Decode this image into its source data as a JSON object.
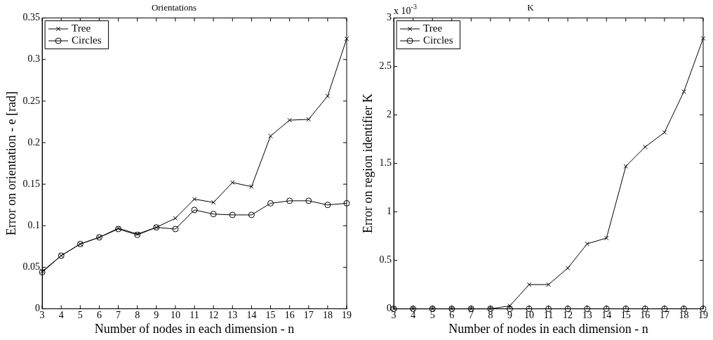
{
  "chart_data": [
    {
      "type": "line",
      "title": "Orientations",
      "xlabel": "Number of nodes in each dimension - n",
      "ylabel": "Error on orientation - e [rad]",
      "x": [
        3,
        4,
        5,
        6,
        7,
        8,
        9,
        10,
        11,
        12,
        13,
        14,
        15,
        16,
        17,
        18,
        19
      ],
      "series": [
        {
          "name": "Tree",
          "color": "#000000",
          "marker": "cross",
          "values": [
            0.045,
            0.064,
            0.078,
            0.086,
            0.097,
            0.09,
            0.098,
            0.109,
            0.132,
            0.128,
            0.152,
            0.147,
            0.208,
            0.227,
            0.228,
            0.256,
            0.325
          ]
        },
        {
          "name": "Circles",
          "color": "#000000",
          "marker": "circle",
          "values": [
            0.044,
            0.064,
            0.078,
            0.086,
            0.096,
            0.089,
            0.098,
            0.096,
            0.119,
            0.114,
            0.113,
            0.113,
            0.127,
            0.13,
            0.13,
            0.125,
            0.127
          ]
        }
      ],
      "xlim": [
        3,
        19
      ],
      "xticks": [
        3,
        4,
        5,
        6,
        7,
        8,
        9,
        10,
        11,
        12,
        13,
        14,
        15,
        16,
        17,
        18,
        19
      ],
      "ylim": [
        0,
        0.35
      ],
      "yticks": [
        0,
        0.05,
        0.1,
        0.15,
        0.2,
        0.25,
        0.3,
        0.35
      ],
      "grid": false,
      "legend": "top left",
      "line_style": "solid"
    },
    {
      "type": "line",
      "title": "K",
      "xlabel": "Number of nodes in each dimension - n",
      "ylabel": "Error on region identifier K",
      "annotations": [
        "x 10$^{-3}$"
      ],
      "x": [
        3,
        4,
        5,
        6,
        7,
        8,
        9,
        10,
        11,
        12,
        13,
        14,
        15,
        16,
        17,
        18,
        19
      ],
      "series": [
        {
          "name": "Tree",
          "color": "#000000",
          "marker": "cross",
          "values": [
            0,
            0,
            0,
            0,
            0,
            0,
            0.03,
            0.25,
            0.25,
            0.42,
            0.67,
            0.73,
            1.47,
            1.67,
            1.82,
            2.24,
            2.79
          ]
        },
        {
          "name": "Circles",
          "color": "#000000",
          "marker": "circle",
          "values": [
            0,
            0,
            0,
            0,
            0,
            0,
            0,
            0,
            0,
            0,
            0,
            0,
            0,
            0,
            0,
            0,
            0
          ]
        }
      ],
      "xlim": [
        3,
        19
      ],
      "xticks": [
        3,
        4,
        5,
        6,
        7,
        8,
        9,
        10,
        11,
        12,
        13,
        14,
        15,
        16,
        17,
        18,
        19
      ],
      "ylim": [
        0,
        3
      ],
      "yticks": [
        0,
        0.5,
        1,
        1.5,
        2,
        2.5,
        3
      ],
      "grid": false,
      "legend": "top left",
      "line_style": "solid"
    }
  ]
}
